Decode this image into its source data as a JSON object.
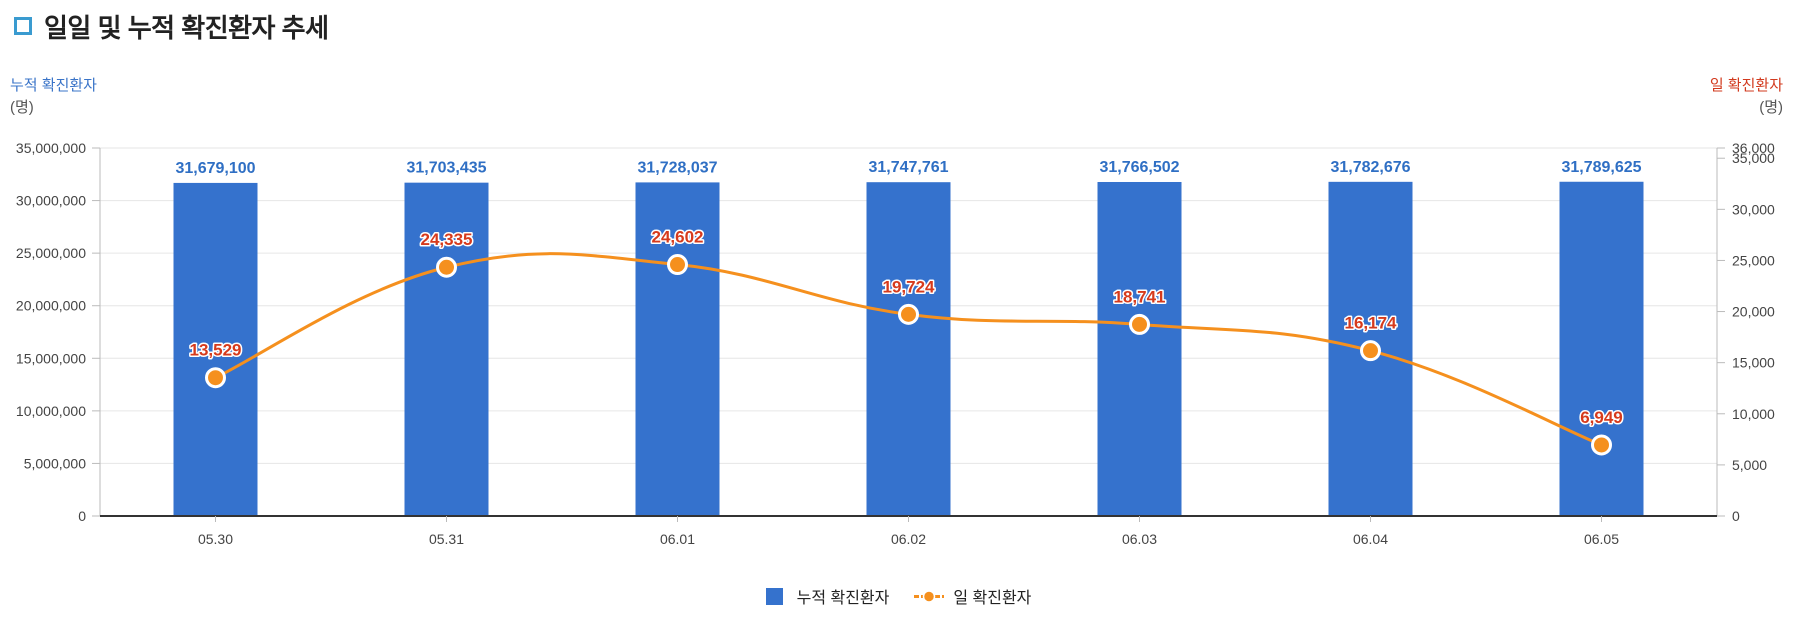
{
  "header": {
    "title": "일일 및 누적 확진환자 추세"
  },
  "axes": {
    "left_title": "누적 확진환자",
    "left_unit": "(명)",
    "right_title": "일 확진환자",
    "right_unit": "(명)"
  },
  "legend": {
    "bar_label": "누적 확진환자",
    "line_label": "일 확진환자"
  },
  "colors": {
    "bar": "#3572cd",
    "line": "#f5901e",
    "bar_label": "#2f6fc4",
    "line_label": "#d63a1c",
    "left_title": "#3a74c8",
    "right_title": "#d23a1e"
  },
  "chart_data": {
    "type": "bar+line",
    "categories": [
      "05.30",
      "05.31",
      "06.01",
      "06.02",
      "06.03",
      "06.04",
      "06.05"
    ],
    "series": [
      {
        "name": "누적 확진환자",
        "type": "bar",
        "axis": "left",
        "values": [
          31679100,
          31703435,
          31728037,
          31747761,
          31766502,
          31782676,
          31789625
        ]
      },
      {
        "name": "일 확진환자",
        "type": "line",
        "axis": "right",
        "values": [
          13529,
          24335,
          24602,
          19724,
          18741,
          16174,
          6949
        ]
      }
    ],
    "left_axis": {
      "range": [
        0,
        35000000
      ],
      "ticks": [
        0,
        5000000,
        10000000,
        15000000,
        20000000,
        25000000,
        30000000,
        35000000
      ],
      "tick_labels": [
        "0",
        "5,000,000",
        "10,000,000",
        "15,000,000",
        "20,000,000",
        "25,000,000",
        "30,000,000",
        "35,000,000"
      ]
    },
    "right_axis": {
      "range": [
        0,
        36000
      ],
      "ticks": [
        0,
        5000,
        10000,
        15000,
        20000,
        25000,
        30000,
        35000,
        36000
      ],
      "tick_labels": [
        "0",
        "5,000",
        "10,000",
        "15,000",
        "20,000",
        "25,000",
        "30,000",
        "35,000",
        "36,000"
      ]
    },
    "bar_data_labels": [
      "31,679,100",
      "31,703,435",
      "31,728,037",
      "31,747,761",
      "31,766,502",
      "31,782,676",
      "31,789,625"
    ],
    "line_data_labels": [
      "13,529",
      "24,335",
      "24,602",
      "19,724",
      "18,741",
      "16,174",
      "6,949"
    ],
    "grid": true,
    "legend_position": "bottom-center"
  }
}
